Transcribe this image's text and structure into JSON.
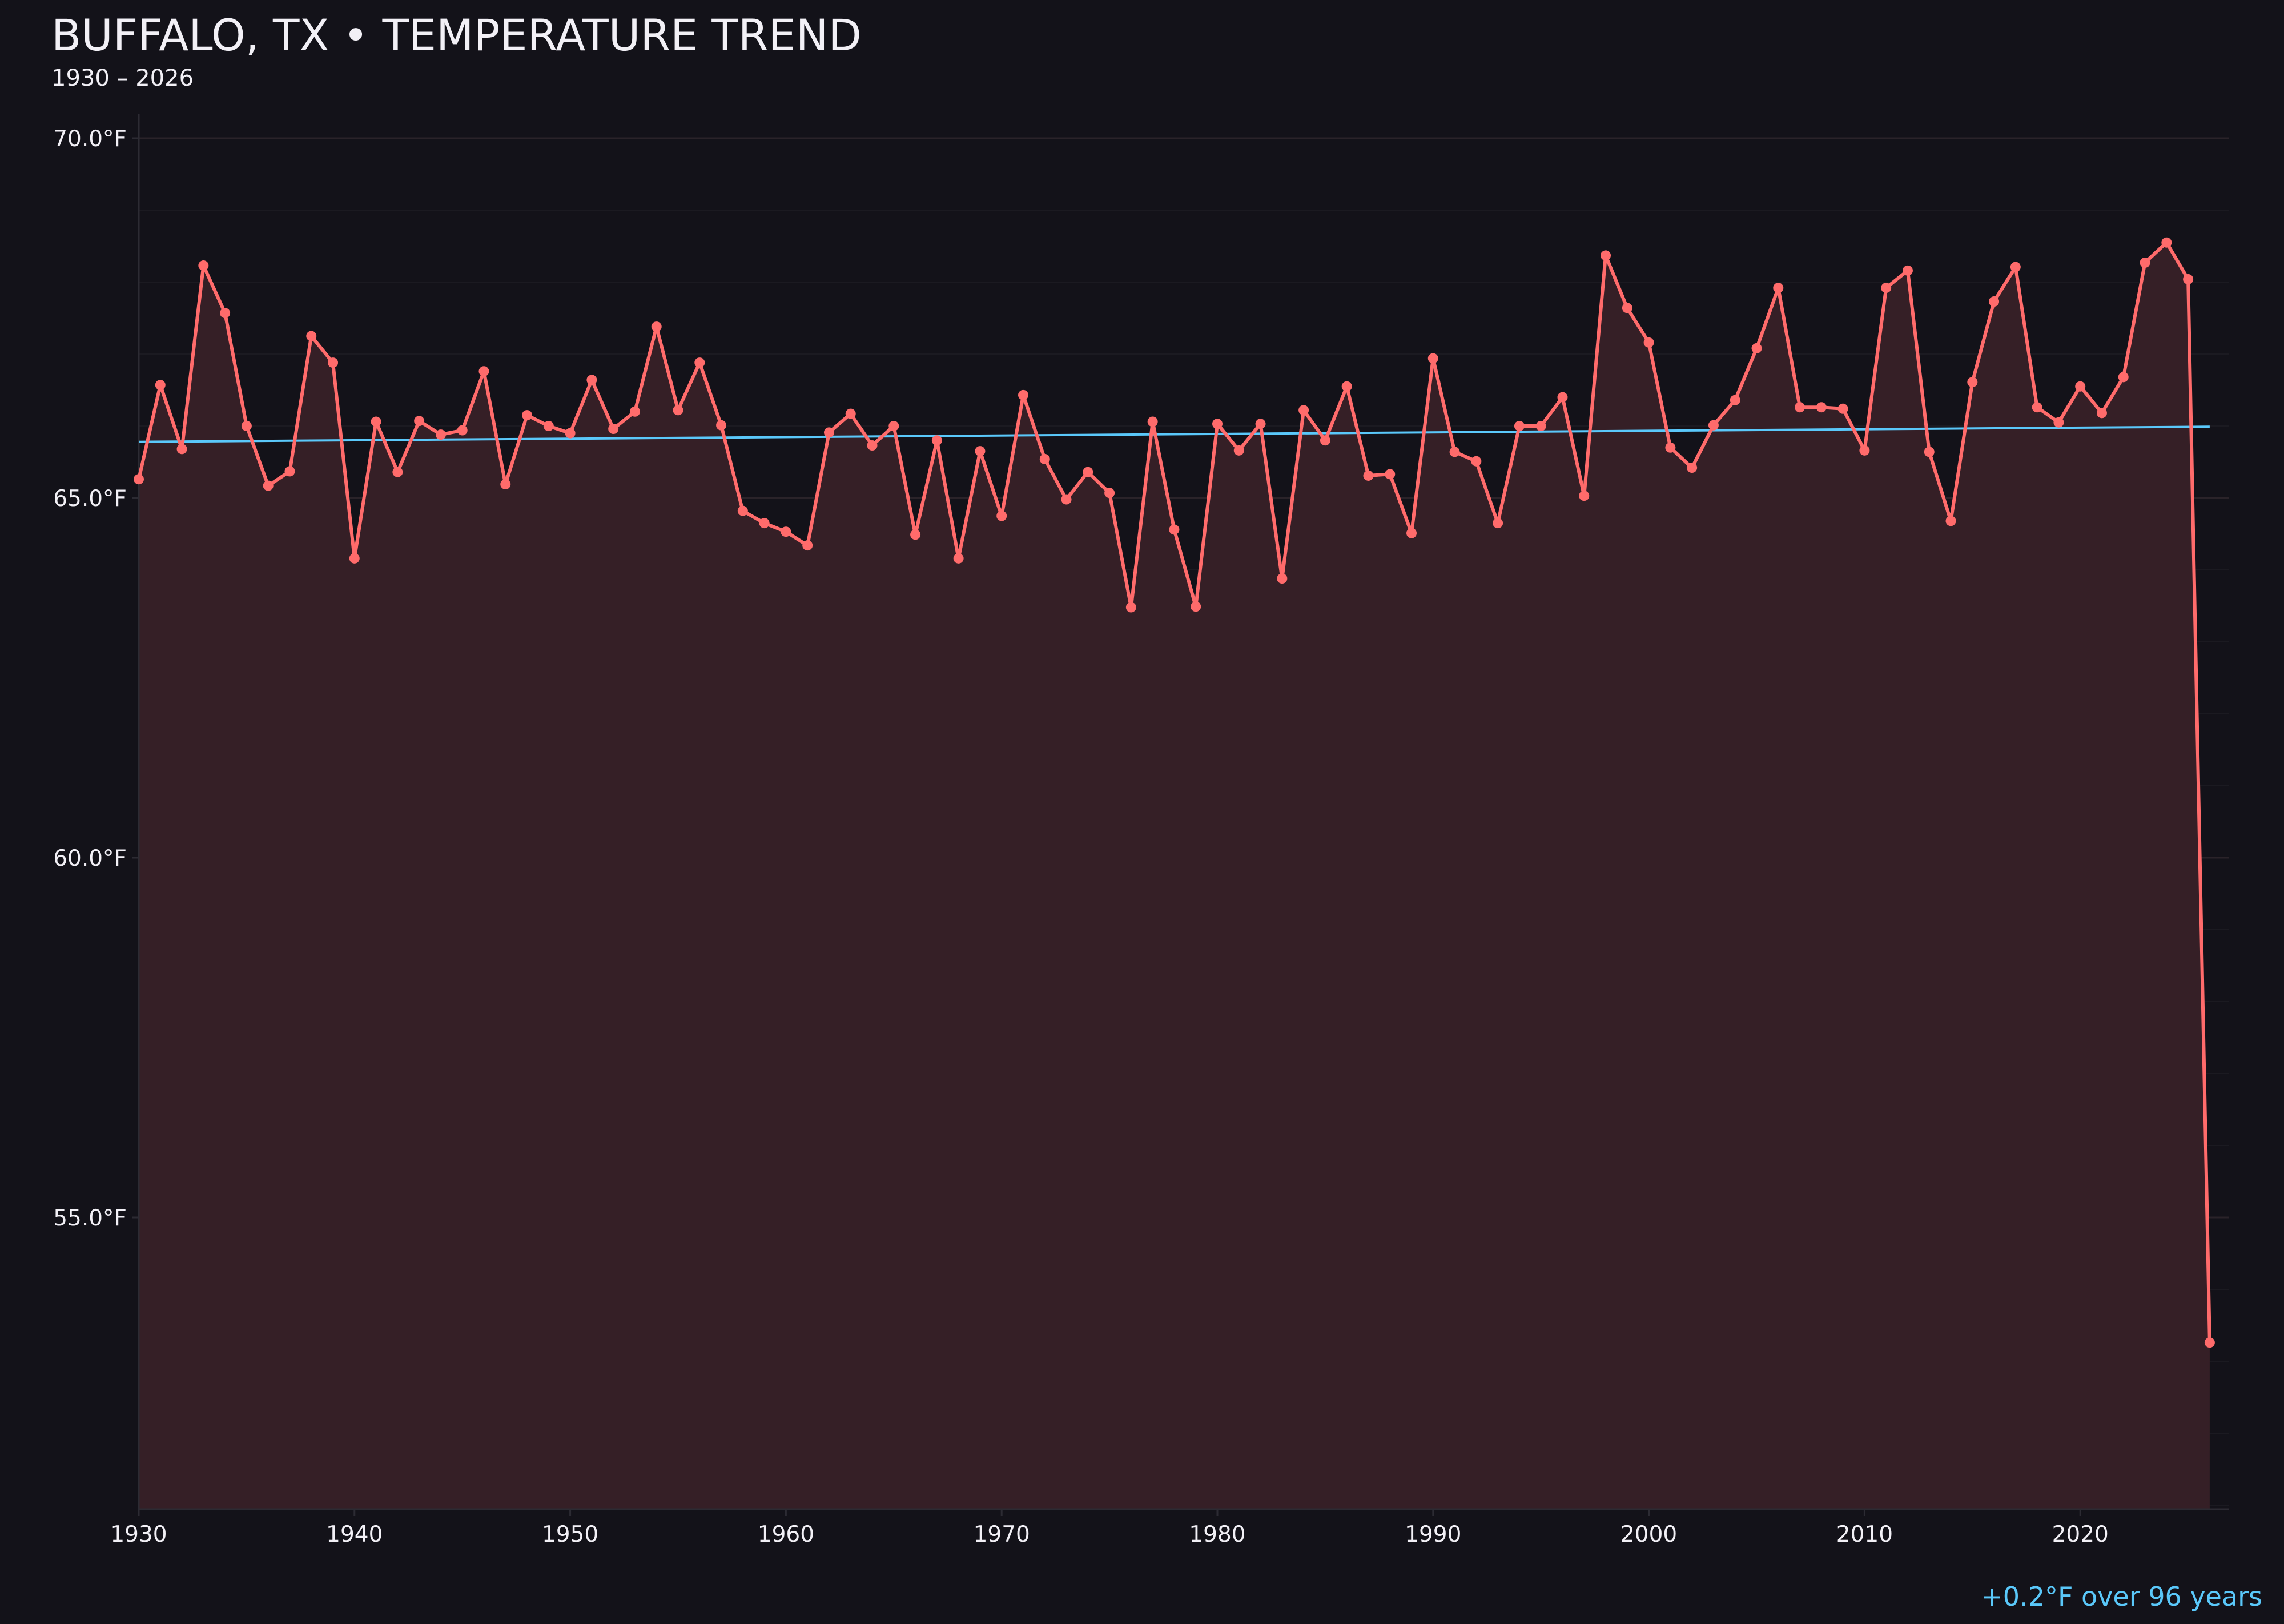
{
  "chart_data": {
    "type": "line",
    "title": "BUFFALO, TX • TEMPERATURE TREND",
    "subtitle": "1930 – 2026",
    "xlabel": "",
    "ylabel": "",
    "x": [
      1930,
      1931,
      1932,
      1933,
      1934,
      1935,
      1936,
      1937,
      1938,
      1939,
      1940,
      1941,
      1942,
      1943,
      1944,
      1945,
      1946,
      1947,
      1948,
      1949,
      1950,
      1951,
      1952,
      1953,
      1954,
      1955,
      1956,
      1957,
      1958,
      1959,
      1960,
      1961,
      1962,
      1963,
      1964,
      1965,
      1966,
      1967,
      1968,
      1969,
      1970,
      1971,
      1972,
      1973,
      1974,
      1975,
      1976,
      1977,
      1978,
      1979,
      1980,
      1981,
      1982,
      1983,
      1984,
      1985,
      1986,
      1987,
      1988,
      1989,
      1990,
      1991,
      1992,
      1993,
      1994,
      1995,
      1996,
      1997,
      1998,
      1999,
      2000,
      2001,
      2002,
      2003,
      2004,
      2005,
      2006,
      2007,
      2008,
      2009,
      2010,
      2011,
      2012,
      2013,
      2014,
      2015,
      2016,
      2017,
      2018,
      2019,
      2020,
      2021,
      2022,
      2023,
      2024,
      2025,
      2026
    ],
    "series": [
      {
        "values": [
          65.26,
          66.57,
          65.68,
          68.23,
          67.57,
          66.0,
          65.17,
          65.37,
          67.25,
          66.88,
          64.16,
          66.06,
          65.36,
          66.07,
          65.88,
          65.94,
          66.76,
          65.19,
          66.15,
          66.0,
          65.9,
          66.64,
          65.96,
          66.2,
          67.38,
          66.22,
          66.88,
          66.01,
          64.82,
          64.65,
          64.53,
          64.34,
          65.91,
          66.17,
          65.73,
          66.0,
          64.49,
          65.8,
          64.16,
          65.65,
          64.75,
          66.43,
          65.54,
          64.98,
          65.36,
          65.07,
          63.48,
          66.06,
          64.56,
          63.49,
          66.03,
          65.66,
          66.03,
          63.88,
          66.22,
          65.8,
          66.55,
          65.31,
          65.33,
          64.51,
          66.94,
          65.64,
          65.51,
          64.65,
          66.0,
          66.0,
          66.4,
          65.03,
          68.37,
          67.64,
          67.16,
          65.7,
          65.42,
          66.01,
          66.36,
          67.08,
          67.92,
          66.26,
          66.26,
          66.24,
          65.66,
          67.92,
          68.16,
          65.64,
          64.68,
          66.61,
          67.73,
          68.21,
          66.26,
          66.05,
          66.55,
          66.18,
          66.68,
          68.27,
          68.55,
          68.04,
          53.26
        ],
        "color": "#ff6b6b"
      }
    ],
    "trend": {
      "x": [
        1930,
        2026
      ],
      "y": [
        65.78,
        65.99
      ],
      "color": "#5ac8fa"
    },
    "trend_label": "+0.2°F over 96 years",
    "xlim": [
      1930,
      2027
    ],
    "ylim": [
      50.95,
      70.9
    ],
    "x_ticks": [
      1930,
      1940,
      1950,
      1960,
      1970,
      1980,
      1990,
      2000,
      2010,
      2020
    ],
    "x_tick_labels": [
      "1930",
      "1940",
      "1950",
      "1960",
      "1970",
      "1980",
      "1990",
      "2000",
      "2010",
      "2020"
    ],
    "y_ticks": [
      55,
      60,
      65,
      70
    ],
    "y_tick_labels": [
      "55.0°F",
      "60.0°F",
      "65.0°F",
      "70.0°F"
    ],
    "grid": true,
    "area_fill": true,
    "background": "#131219"
  }
}
